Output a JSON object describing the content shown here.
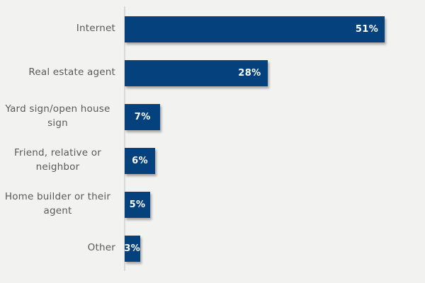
{
  "chart_data": {
    "type": "bar",
    "orientation": "horizontal",
    "title": "",
    "xlabel": "",
    "ylabel": "",
    "legend_position": "none",
    "grid": "off",
    "xlim": [
      0,
      59
    ],
    "unit": "percent",
    "categories": [
      "Internet",
      "Real estate agent",
      "Yard sign/open house sign",
      "Friend, relative or neighbor",
      "Home builder or their agent",
      "Other"
    ],
    "values": [
      51,
      28,
      7,
      6,
      5,
      3
    ],
    "value_labels": [
      "51%",
      "28%",
      "7%",
      "6%",
      "5%",
      "3%"
    ],
    "colors": {
      "bar": "#05427D",
      "category_text": "#595959",
      "value_text": "#FFFFFF",
      "axis_line": "#D9D9D9",
      "background": "#F2F2F1"
    }
  }
}
